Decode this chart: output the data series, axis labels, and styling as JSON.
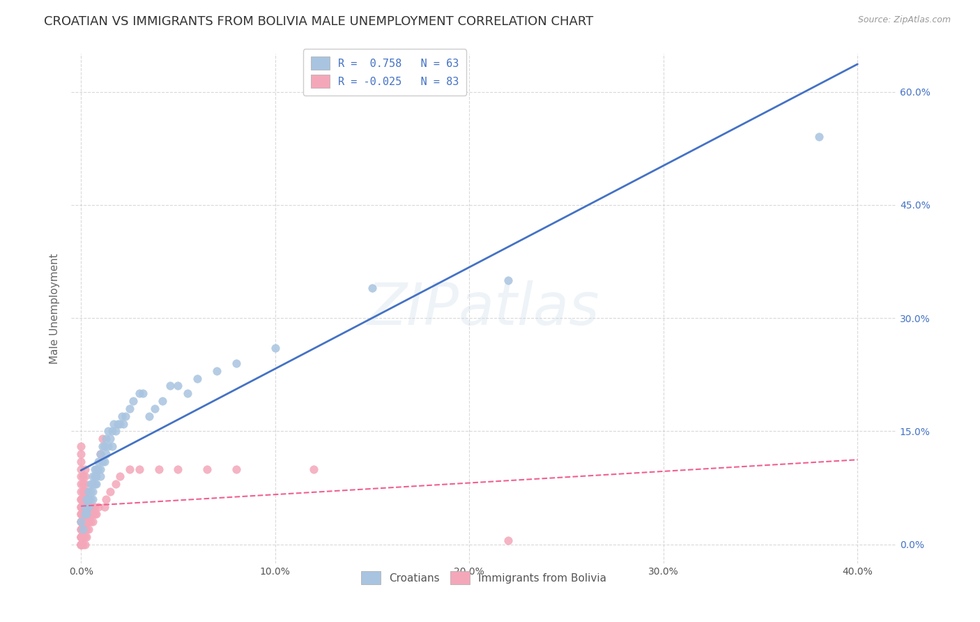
{
  "title": "CROATIAN VS IMMIGRANTS FROM BOLIVIA MALE UNEMPLOYMENT CORRELATION CHART",
  "source": "Source: ZipAtlas.com",
  "ylabel": "Male Unemployment",
  "x_tick_labels": [
    "0.0%",
    "10.0%",
    "20.0%",
    "30.0%",
    "40.0%"
  ],
  "x_tick_vals": [
    0.0,
    0.1,
    0.2,
    0.3,
    0.4
  ],
  "y_tick_labels": [
    "0.0%",
    "15.0%",
    "30.0%",
    "45.0%",
    "60.0%"
  ],
  "y_tick_vals": [
    0.0,
    0.15,
    0.3,
    0.45,
    0.6
  ],
  "xlim": [
    -0.005,
    0.42
  ],
  "ylim": [
    -0.025,
    0.65
  ],
  "legend_labels": [
    "Croatians",
    "Immigrants from Bolivia"
  ],
  "croatian_color": "#a8c4e0",
  "bolivia_color": "#f4a7b9",
  "croatian_line_color": "#4472c4",
  "bolivia_line_color": "#f06090",
  "R_croatian": 0.758,
  "N_croatian": 63,
  "R_bolivia": -0.025,
  "N_bolivia": 83,
  "watermark": "ZIPatlas",
  "croatian_scatter_x": [
    0.0,
    0.001,
    0.002,
    0.002,
    0.003,
    0.003,
    0.003,
    0.004,
    0.004,
    0.004,
    0.005,
    0.005,
    0.005,
    0.006,
    0.006,
    0.006,
    0.006,
    0.007,
    0.007,
    0.007,
    0.008,
    0.008,
    0.008,
    0.009,
    0.009,
    0.01,
    0.01,
    0.01,
    0.011,
    0.011,
    0.012,
    0.012,
    0.013,
    0.013,
    0.014,
    0.014,
    0.015,
    0.016,
    0.016,
    0.017,
    0.018,
    0.019,
    0.02,
    0.021,
    0.022,
    0.023,
    0.025,
    0.027,
    0.03,
    0.032,
    0.035,
    0.038,
    0.042,
    0.046,
    0.05,
    0.055,
    0.06,
    0.07,
    0.08,
    0.1,
    0.15,
    0.22,
    0.38
  ],
  "croatian_scatter_y": [
    0.03,
    0.02,
    0.04,
    0.05,
    0.04,
    0.06,
    0.05,
    0.05,
    0.07,
    0.06,
    0.06,
    0.08,
    0.07,
    0.06,
    0.08,
    0.09,
    0.07,
    0.08,
    0.09,
    0.1,
    0.09,
    0.1,
    0.08,
    0.1,
    0.11,
    0.1,
    0.12,
    0.09,
    0.11,
    0.13,
    0.11,
    0.13,
    0.12,
    0.14,
    0.13,
    0.15,
    0.14,
    0.15,
    0.13,
    0.16,
    0.15,
    0.16,
    0.16,
    0.17,
    0.16,
    0.17,
    0.18,
    0.19,
    0.2,
    0.2,
    0.17,
    0.18,
    0.19,
    0.21,
    0.21,
    0.2,
    0.22,
    0.23,
    0.24,
    0.26,
    0.34,
    0.35,
    0.54
  ],
  "bolivia_scatter_x": [
    0.0,
    0.0,
    0.0,
    0.0,
    0.0,
    0.0,
    0.0,
    0.0,
    0.0,
    0.0,
    0.0,
    0.0,
    0.0,
    0.0,
    0.0,
    0.0,
    0.0,
    0.0,
    0.0,
    0.0,
    0.0,
    0.0,
    0.0,
    0.0,
    0.0,
    0.001,
    0.001,
    0.001,
    0.001,
    0.001,
    0.001,
    0.001,
    0.001,
    0.001,
    0.001,
    0.002,
    0.002,
    0.002,
    0.002,
    0.002,
    0.002,
    0.002,
    0.002,
    0.002,
    0.002,
    0.002,
    0.003,
    0.003,
    0.003,
    0.003,
    0.003,
    0.003,
    0.003,
    0.004,
    0.004,
    0.004,
    0.004,
    0.004,
    0.005,
    0.005,
    0.005,
    0.006,
    0.006,
    0.006,
    0.007,
    0.007,
    0.008,
    0.009,
    0.01,
    0.011,
    0.012,
    0.013,
    0.015,
    0.018,
    0.02,
    0.025,
    0.03,
    0.04,
    0.05,
    0.065,
    0.08,
    0.12,
    0.22
  ],
  "bolivia_scatter_y": [
    0.0,
    0.0,
    0.0,
    0.0,
    0.0,
    0.01,
    0.01,
    0.01,
    0.02,
    0.02,
    0.03,
    0.03,
    0.04,
    0.04,
    0.05,
    0.05,
    0.06,
    0.06,
    0.07,
    0.08,
    0.09,
    0.1,
    0.11,
    0.12,
    0.13,
    0.0,
    0.01,
    0.02,
    0.03,
    0.04,
    0.05,
    0.06,
    0.07,
    0.08,
    0.09,
    0.0,
    0.01,
    0.02,
    0.03,
    0.04,
    0.05,
    0.06,
    0.07,
    0.08,
    0.09,
    0.1,
    0.01,
    0.02,
    0.03,
    0.04,
    0.05,
    0.06,
    0.07,
    0.02,
    0.03,
    0.04,
    0.05,
    0.06,
    0.03,
    0.04,
    0.05,
    0.03,
    0.04,
    0.05,
    0.04,
    0.05,
    0.04,
    0.05,
    0.12,
    0.14,
    0.05,
    0.06,
    0.07,
    0.08,
    0.09,
    0.1,
    0.1,
    0.1,
    0.1,
    0.1,
    0.1,
    0.1,
    0.005
  ],
  "background_color": "#ffffff",
  "grid_color": "#d0d0d0",
  "title_fontsize": 13,
  "axis_label_fontsize": 11,
  "tick_fontsize": 10,
  "legend_fontsize": 11,
  "right_tick_color": "#4472c4",
  "legend_text_color": "#333333",
  "legend_value_color": "#4472c4"
}
